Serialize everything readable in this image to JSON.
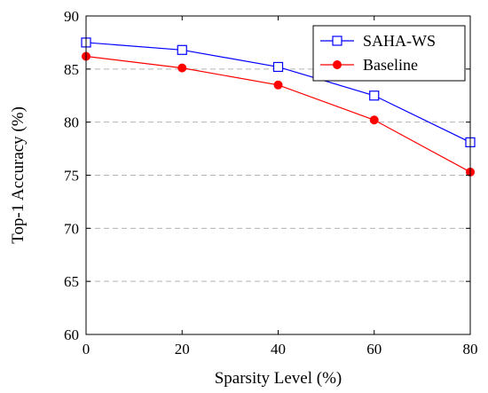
{
  "chart_data": {
    "type": "line",
    "xlabel": "Sparsity Level (%)",
    "ylabel": "Top-1 Accuracy (%)",
    "x": [
      0,
      20,
      40,
      60,
      80
    ],
    "xlim": [
      0,
      80
    ],
    "ylim": [
      60,
      90
    ],
    "xticks": [
      "0",
      "20",
      "40",
      "60",
      "80"
    ],
    "yticks": [
      "60",
      "65",
      "70",
      "75",
      "80",
      "85",
      "90"
    ],
    "grid": "horizontal dashed",
    "legend_position": "top-right",
    "series": [
      {
        "name": "SAHA-WS",
        "values": [
          87.5,
          86.8,
          85.2,
          82.5,
          78.1
        ],
        "color": "#0000ff",
        "marker": "open-square"
      },
      {
        "name": "Baseline",
        "values": [
          86.2,
          85.1,
          83.5,
          80.2,
          75.3
        ],
        "color": "#ff0000",
        "marker": "filled-circle"
      }
    ]
  }
}
